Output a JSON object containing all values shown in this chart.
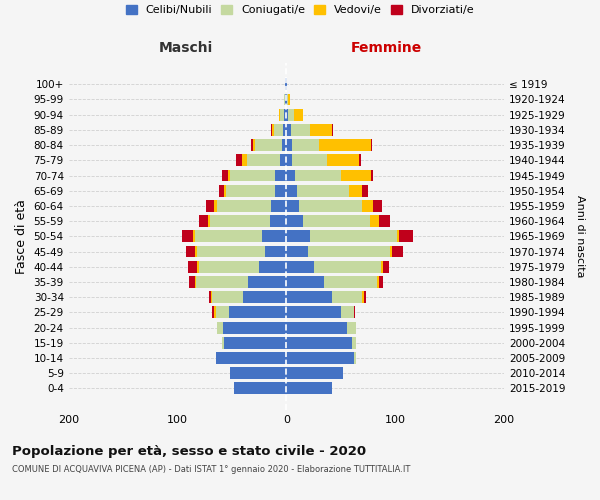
{
  "age_groups": [
    "0-4",
    "5-9",
    "10-14",
    "15-19",
    "20-24",
    "25-29",
    "30-34",
    "35-39",
    "40-44",
    "45-49",
    "50-54",
    "55-59",
    "60-64",
    "65-69",
    "70-74",
    "75-79",
    "80-84",
    "85-89",
    "90-94",
    "95-99",
    "100+"
  ],
  "birth_years": [
    "2015-2019",
    "2010-2014",
    "2005-2009",
    "2000-2004",
    "1995-1999",
    "1990-1994",
    "1985-1989",
    "1980-1984",
    "1975-1979",
    "1970-1974",
    "1965-1969",
    "1960-1964",
    "1955-1959",
    "1950-1954",
    "1945-1949",
    "1940-1944",
    "1935-1939",
    "1930-1934",
    "1925-1929",
    "1920-1924",
    "≤ 1919"
  ],
  "male": {
    "celibi": [
      48,
      52,
      65,
      57,
      58,
      53,
      40,
      35,
      25,
      20,
      22,
      15,
      14,
      10,
      10,
      6,
      4,
      3,
      2,
      1,
      1
    ],
    "coniugati": [
      0,
      0,
      0,
      2,
      6,
      12,
      28,
      48,
      55,
      62,
      62,
      55,
      50,
      45,
      42,
      30,
      25,
      8,
      4,
      1,
      0
    ],
    "vedovi": [
      0,
      0,
      0,
      0,
      0,
      1,
      1,
      1,
      2,
      2,
      2,
      2,
      2,
      2,
      2,
      5,
      2,
      2,
      1,
      0,
      0
    ],
    "divorziati": [
      0,
      0,
      0,
      0,
      0,
      2,
      2,
      5,
      8,
      8,
      10,
      8,
      8,
      5,
      5,
      5,
      1,
      1,
      0,
      0,
      0
    ]
  },
  "female": {
    "nubili": [
      42,
      52,
      62,
      60,
      56,
      50,
      42,
      35,
      25,
      20,
      22,
      15,
      12,
      10,
      8,
      5,
      5,
      4,
      2,
      1,
      1
    ],
    "coniugate": [
      0,
      0,
      2,
      4,
      8,
      12,
      28,
      48,
      62,
      75,
      80,
      62,
      58,
      48,
      42,
      32,
      25,
      18,
      5,
      1,
      0
    ],
    "vedove": [
      0,
      0,
      0,
      0,
      0,
      0,
      1,
      2,
      2,
      2,
      2,
      8,
      10,
      12,
      28,
      30,
      48,
      20,
      8,
      1,
      0
    ],
    "divorziate": [
      0,
      0,
      0,
      0,
      0,
      1,
      2,
      4,
      5,
      10,
      12,
      10,
      8,
      5,
      2,
      2,
      1,
      1,
      0,
      0,
      0
    ]
  },
  "colors": {
    "celibi": "#4472c4",
    "coniugati": "#c5d9a0",
    "vedovi": "#ffc000",
    "divorziati": "#c0001b"
  },
  "xlim": [
    -200,
    200
  ],
  "xticks": [
    -200,
    -100,
    0,
    100,
    200
  ],
  "xticklabels": [
    "200",
    "100",
    "0",
    "100",
    "200"
  ],
  "title": "Popolazione per età, sesso e stato civile - 2020",
  "subtitle": "COMUNE DI ACQUAVIVA PICENA (AP) - Dati ISTAT 1° gennaio 2020 - Elaborazione TUTTITALIA.IT",
  "ylabel": "Fasce di età",
  "ylabel_right": "Anni di nascita",
  "legend_labels": [
    "Celibi/Nubili",
    "Coniugati/e",
    "Vedovi/e",
    "Divorziati/e"
  ],
  "maschi_label": "Maschi",
  "femmine_label": "Femmine",
  "background_color": "#f5f5f5",
  "grid_color": "#cccccc"
}
